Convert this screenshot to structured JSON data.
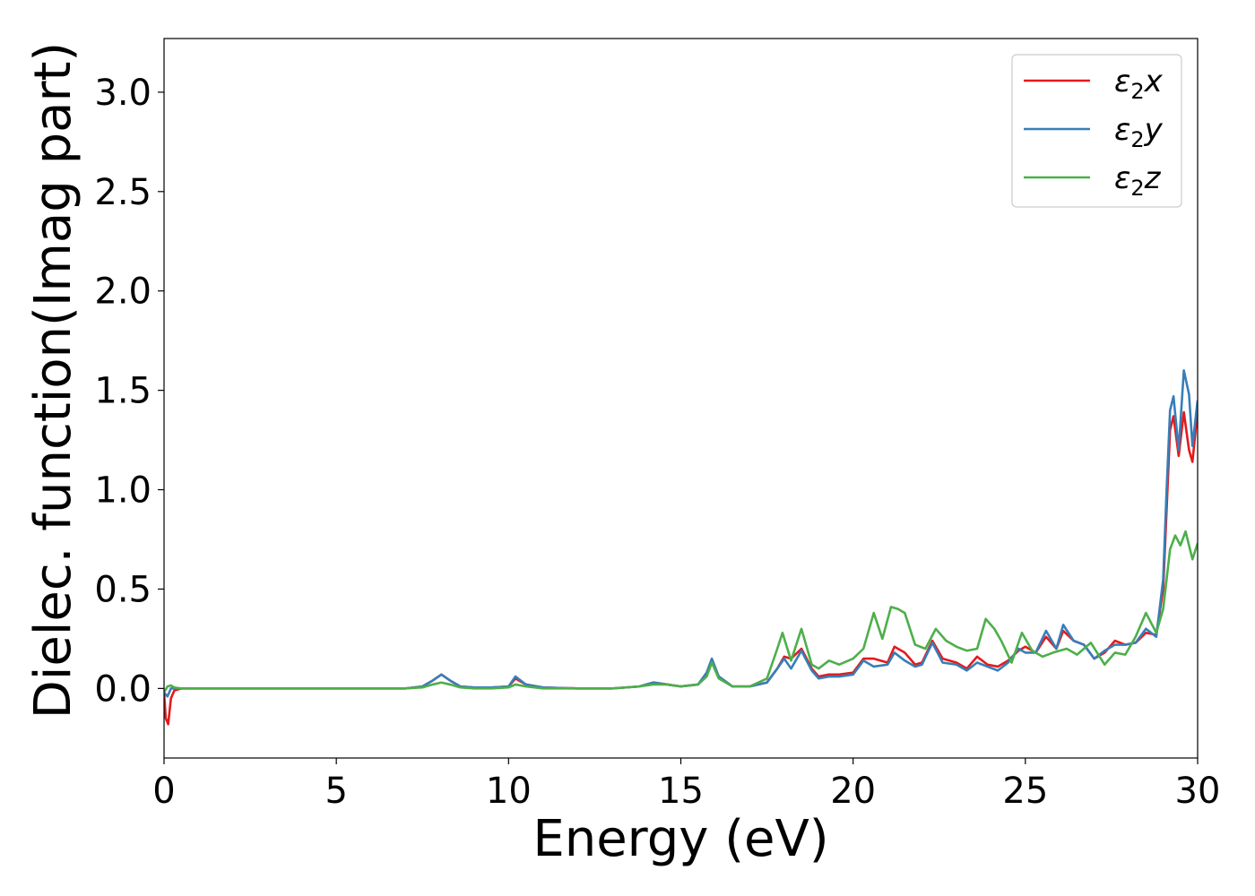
{
  "chart_data": {
    "type": "line",
    "title": "",
    "xlabel": "Energy (eV)",
    "ylabel": "Dielec. function(Imag part)",
    "xlim": [
      0,
      30
    ],
    "ylim": [
      -0.35,
      3.27
    ],
    "xticks": [
      0,
      5,
      10,
      15,
      20,
      25,
      30
    ],
    "xtick_labels": [
      "0",
      "5",
      "10",
      "15",
      "20",
      "25",
      "30"
    ],
    "yticks": [
      0.0,
      0.5,
      1.0,
      1.5,
      2.0,
      2.5,
      3.0
    ],
    "ytick_labels": [
      "0.0",
      "0.5",
      "1.0",
      "1.5",
      "2.0",
      "2.5",
      "3.0"
    ],
    "grid": false,
    "legend_position": "top-right",
    "series": [
      {
        "name": "ε2x",
        "legend_base": "ε",
        "legend_sub": "2",
        "legend_var": "x",
        "color": "#e41a1c",
        "x": [
          0,
          0.05,
          0.12,
          0.2,
          0.3,
          0.5,
          1,
          3,
          5,
          7,
          7.5,
          7.8,
          8.05,
          8.3,
          8.6,
          9,
          9.5,
          10,
          10.2,
          10.5,
          11,
          12,
          13,
          13.8,
          14.2,
          14.6,
          15,
          15.5,
          15.75,
          15.9,
          16.1,
          16.5,
          17,
          17.5,
          17.8,
          18,
          18.2,
          18.5,
          18.8,
          19,
          19.3,
          19.6,
          20,
          20.3,
          20.6,
          21,
          21.2,
          21.5,
          21.8,
          22,
          22.3,
          22.6,
          23,
          23.3,
          23.6,
          23.9,
          24.2,
          24.5,
          24.8,
          25,
          25.3,
          25.6,
          25.9,
          26.1,
          26.4,
          26.7,
          27,
          27.3,
          27.6,
          27.9,
          28.2,
          28.5,
          28.8,
          29,
          29.1,
          29.2,
          29.3,
          29.45,
          29.6,
          29.75,
          29.85,
          30
        ],
        "y": [
          -0.02,
          -0.15,
          -0.18,
          -0.05,
          -0.01,
          0.0,
          0.0,
          0.0,
          0.0,
          0.0,
          0.01,
          0.04,
          0.07,
          0.04,
          0.01,
          0.005,
          0.005,
          0.01,
          0.05,
          0.02,
          0.005,
          0.0,
          0.0,
          0.01,
          0.03,
          0.02,
          0.01,
          0.02,
          0.07,
          0.14,
          0.06,
          0.01,
          0.01,
          0.03,
          0.1,
          0.16,
          0.15,
          0.2,
          0.1,
          0.06,
          0.07,
          0.07,
          0.08,
          0.15,
          0.15,
          0.13,
          0.21,
          0.18,
          0.12,
          0.13,
          0.24,
          0.15,
          0.13,
          0.1,
          0.16,
          0.12,
          0.11,
          0.14,
          0.19,
          0.21,
          0.18,
          0.26,
          0.2,
          0.29,
          0.24,
          0.22,
          0.15,
          0.18,
          0.24,
          0.22,
          0.23,
          0.28,
          0.27,
          0.5,
          0.9,
          1.3,
          1.37,
          1.17,
          1.39,
          1.2,
          1.14,
          1.4
        ]
      },
      {
        "name": "ε2y",
        "legend_base": "ε",
        "legend_sub": "2",
        "legend_var": "y",
        "color": "#377eb8",
        "x": [
          0,
          0.1,
          0.2,
          0.3,
          0.5,
          1,
          3,
          5,
          7,
          7.5,
          7.8,
          8.05,
          8.3,
          8.6,
          9,
          9.5,
          10,
          10.2,
          10.5,
          11,
          12,
          13,
          13.8,
          14.2,
          14.6,
          15,
          15.5,
          15.75,
          15.9,
          16.1,
          16.5,
          17,
          17.5,
          17.8,
          18,
          18.2,
          18.5,
          18.8,
          19,
          19.3,
          19.6,
          20,
          20.3,
          20.6,
          21,
          21.2,
          21.5,
          21.8,
          22,
          22.3,
          22.6,
          23,
          23.3,
          23.6,
          23.9,
          24.2,
          24.5,
          24.8,
          25,
          25.3,
          25.6,
          25.9,
          26.1,
          26.4,
          26.7,
          27,
          27.3,
          27.6,
          27.9,
          28.2,
          28.5,
          28.8,
          29,
          29.1,
          29.2,
          29.3,
          29.45,
          29.6,
          29.75,
          29.85,
          30
        ],
        "y": [
          -0.02,
          -0.04,
          0.0,
          0.0,
          0.0,
          0.0,
          0.0,
          0.0,
          0.0,
          0.01,
          0.04,
          0.07,
          0.04,
          0.01,
          0.005,
          0.005,
          0.01,
          0.06,
          0.02,
          0.005,
          0.0,
          0.0,
          0.01,
          0.03,
          0.02,
          0.01,
          0.02,
          0.08,
          0.15,
          0.06,
          0.01,
          0.01,
          0.03,
          0.1,
          0.15,
          0.1,
          0.19,
          0.09,
          0.05,
          0.06,
          0.06,
          0.07,
          0.14,
          0.11,
          0.12,
          0.18,
          0.14,
          0.11,
          0.12,
          0.23,
          0.13,
          0.12,
          0.09,
          0.13,
          0.11,
          0.09,
          0.13,
          0.2,
          0.18,
          0.18,
          0.29,
          0.2,
          0.32,
          0.24,
          0.22,
          0.15,
          0.19,
          0.22,
          0.22,
          0.23,
          0.3,
          0.26,
          0.55,
          1.0,
          1.4,
          1.47,
          1.2,
          1.6,
          1.48,
          1.22,
          1.45
        ]
      },
      {
        "name": "ε2z",
        "legend_base": "ε",
        "legend_sub": "2",
        "legend_var": "z",
        "color": "#4daf4a",
        "x": [
          0,
          0.1,
          0.2,
          0.3,
          0.5,
          1,
          3,
          5,
          7,
          7.5,
          7.8,
          8.05,
          8.3,
          8.6,
          9,
          9.5,
          10,
          10.2,
          10.5,
          11,
          12,
          13,
          13.8,
          14.2,
          14.6,
          15,
          15.5,
          15.75,
          15.9,
          16.1,
          16.5,
          17,
          17.5,
          17.8,
          17.95,
          18.2,
          18.5,
          18.8,
          19,
          19.3,
          19.6,
          20,
          20.3,
          20.6,
          20.85,
          21.1,
          21.3,
          21.5,
          21.8,
          22.1,
          22.4,
          22.7,
          23,
          23.3,
          23.6,
          23.85,
          24.1,
          24.3,
          24.6,
          24.9,
          25.2,
          25.5,
          25.8,
          26.2,
          26.5,
          26.9,
          27.3,
          27.6,
          27.9,
          28.2,
          28.5,
          28.8,
          29,
          29.2,
          29.35,
          29.5,
          29.65,
          29.85,
          30
        ],
        "y": [
          -0.02,
          0.01,
          0.015,
          0.005,
          0.0,
          0.0,
          0.0,
          0.0,
          0.0,
          0.005,
          0.02,
          0.03,
          0.02,
          0.005,
          0.0,
          0.0,
          0.005,
          0.02,
          0.01,
          0.0,
          0.0,
          0.0,
          0.01,
          0.02,
          0.02,
          0.01,
          0.02,
          0.06,
          0.13,
          0.05,
          0.01,
          0.01,
          0.05,
          0.2,
          0.28,
          0.14,
          0.3,
          0.12,
          0.1,
          0.14,
          0.12,
          0.15,
          0.2,
          0.38,
          0.25,
          0.41,
          0.4,
          0.38,
          0.22,
          0.2,
          0.3,
          0.24,
          0.21,
          0.19,
          0.2,
          0.35,
          0.3,
          0.24,
          0.13,
          0.28,
          0.19,
          0.16,
          0.18,
          0.2,
          0.17,
          0.23,
          0.12,
          0.18,
          0.17,
          0.26,
          0.38,
          0.28,
          0.4,
          0.7,
          0.77,
          0.72,
          0.79,
          0.65,
          0.73
        ]
      }
    ]
  }
}
